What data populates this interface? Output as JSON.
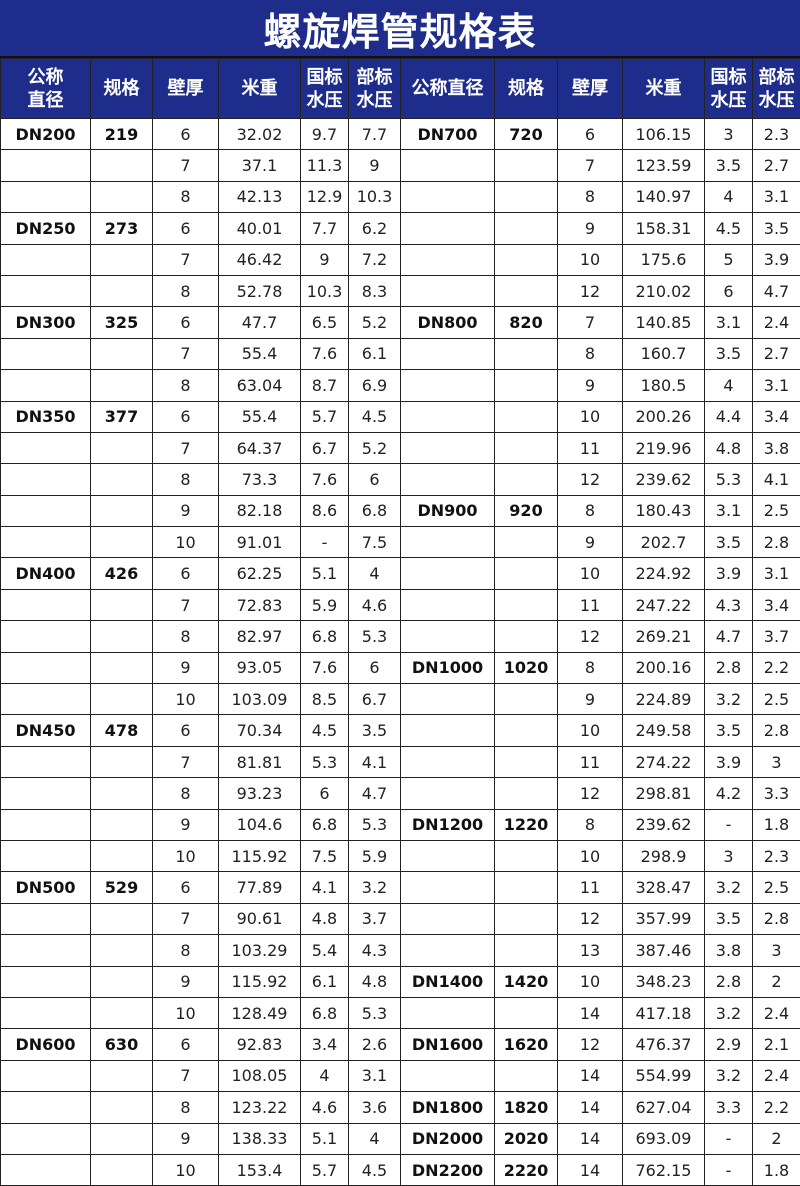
{
  "title": "螺旋焊管规格表",
  "headers": [
    "公称\n直径",
    "规格",
    "壁厚",
    "米重",
    "国标\n水压",
    "部标\n水压",
    "公称直径",
    "规格",
    "壁厚",
    "米重",
    "国标\n水压",
    "部标\n水压"
  ],
  "colors": {
    "header_bg": "#1e2d8c",
    "header_text": "#ffffff"
  },
  "rows": [
    [
      "DN200",
      "219",
      "6",
      "32.02",
      "9.7",
      "7.7",
      "DN700",
      "720",
      "6",
      "106.15",
      "3",
      "2.3"
    ],
    [
      "",
      "",
      "7",
      "37.1",
      "11.3",
      "9",
      "",
      "",
      "7",
      "123.59",
      "3.5",
      "2.7"
    ],
    [
      "",
      "",
      "8",
      "42.13",
      "12.9",
      "10.3",
      "",
      "",
      "8",
      "140.97",
      "4",
      "3.1"
    ],
    [
      "DN250",
      "273",
      "6",
      "40.01",
      "7.7",
      "6.2",
      "",
      "",
      "9",
      "158.31",
      "4.5",
      "3.5"
    ],
    [
      "",
      "",
      "7",
      "46.42",
      "9",
      "7.2",
      "",
      "",
      "10",
      "175.6",
      "5",
      "3.9"
    ],
    [
      "",
      "",
      "8",
      "52.78",
      "10.3",
      "8.3",
      "",
      "",
      "12",
      "210.02",
      "6",
      "4.7"
    ],
    [
      "DN300",
      "325",
      "6",
      "47.7",
      "6.5",
      "5.2",
      "DN800",
      "820",
      "7",
      "140.85",
      "3.1",
      "2.4"
    ],
    [
      "",
      "",
      "7",
      "55.4",
      "7.6",
      "6.1",
      "",
      "",
      "8",
      "160.7",
      "3.5",
      "2.7"
    ],
    [
      "",
      "",
      "8",
      "63.04",
      "8.7",
      "6.9",
      "",
      "",
      "9",
      "180.5",
      "4",
      "3.1"
    ],
    [
      "DN350",
      "377",
      "6",
      "55.4",
      "5.7",
      "4.5",
      "",
      "",
      "10",
      "200.26",
      "4.4",
      "3.4"
    ],
    [
      "",
      "",
      "7",
      "64.37",
      "6.7",
      "5.2",
      "",
      "",
      "11",
      "219.96",
      "4.8",
      "3.8"
    ],
    [
      "",
      "",
      "8",
      "73.3",
      "7.6",
      "6",
      "",
      "",
      "12",
      "239.62",
      "5.3",
      "4.1"
    ],
    [
      "",
      "",
      "9",
      "82.18",
      "8.6",
      "6.8",
      "DN900",
      "920",
      "8",
      "180.43",
      "3.1",
      "2.5"
    ],
    [
      "",
      "",
      "10",
      "91.01",
      "-",
      "7.5",
      "",
      "",
      "9",
      "202.7",
      "3.5",
      "2.8"
    ],
    [
      "DN400",
      "426",
      "6",
      "62.25",
      "5.1",
      "4",
      "",
      "",
      "10",
      "224.92",
      "3.9",
      "3.1"
    ],
    [
      "",
      "",
      "7",
      "72.83",
      "5.9",
      "4.6",
      "",
      "",
      "11",
      "247.22",
      "4.3",
      "3.4"
    ],
    [
      "",
      "",
      "8",
      "82.97",
      "6.8",
      "5.3",
      "",
      "",
      "12",
      "269.21",
      "4.7",
      "3.7"
    ],
    [
      "",
      "",
      "9",
      "93.05",
      "7.6",
      "6",
      "DN1000",
      "1020",
      "8",
      "200.16",
      "2.8",
      "2.2"
    ],
    [
      "",
      "",
      "10",
      "103.09",
      "8.5",
      "6.7",
      "",
      "",
      "9",
      "224.89",
      "3.2",
      "2.5"
    ],
    [
      "DN450",
      "478",
      "6",
      "70.34",
      "4.5",
      "3.5",
      "",
      "",
      "10",
      "249.58",
      "3.5",
      "2.8"
    ],
    [
      "",
      "",
      "7",
      "81.81",
      "5.3",
      "4.1",
      "",
      "",
      "11",
      "274.22",
      "3.9",
      "3"
    ],
    [
      "",
      "",
      "8",
      "93.23",
      "6",
      "4.7",
      "",
      "",
      "12",
      "298.81",
      "4.2",
      "3.3"
    ],
    [
      "",
      "",
      "9",
      "104.6",
      "6.8",
      "5.3",
      "DN1200",
      "1220",
      "8",
      "239.62",
      "-",
      "1.8"
    ],
    [
      "",
      "",
      "10",
      "115.92",
      "7.5",
      "5.9",
      "",
      "",
      "10",
      "298.9",
      "3",
      "2.3"
    ],
    [
      "DN500",
      "529",
      "6",
      "77.89",
      "4.1",
      "3.2",
      "",
      "",
      "11",
      "328.47",
      "3.2",
      "2.5"
    ],
    [
      "",
      "",
      "7",
      "90.61",
      "4.8",
      "3.7",
      "",
      "",
      "12",
      "357.99",
      "3.5",
      "2.8"
    ],
    [
      "",
      "",
      "8",
      "103.29",
      "5.4",
      "4.3",
      "",
      "",
      "13",
      "387.46",
      "3.8",
      "3"
    ],
    [
      "",
      "",
      "9",
      "115.92",
      "6.1",
      "4.8",
      "DN1400",
      "1420",
      "10",
      "348.23",
      "2.8",
      "2"
    ],
    [
      "",
      "",
      "10",
      "128.49",
      "6.8",
      "5.3",
      "",
      "",
      "14",
      "417.18",
      "3.2",
      "2.4"
    ],
    [
      "DN600",
      "630",
      "6",
      "92.83",
      "3.4",
      "2.6",
      "DN1600",
      "1620",
      "12",
      "476.37",
      "2.9",
      "2.1"
    ],
    [
      "",
      "",
      "7",
      "108.05",
      "4",
      "3.1",
      "",
      "",
      "14",
      "554.99",
      "3.2",
      "2.4"
    ],
    [
      "",
      "",
      "8",
      "123.22",
      "4.6",
      "3.6",
      "DN1800",
      "1820",
      "14",
      "627.04",
      "3.3",
      "2.2"
    ],
    [
      "",
      "",
      "9",
      "138.33",
      "5.1",
      "4",
      "DN2000",
      "2020",
      "14",
      "693.09",
      "-",
      "2"
    ],
    [
      "",
      "",
      "10",
      "153.4",
      "5.7",
      "4.5",
      "DN2200",
      "2220",
      "14",
      "762.15",
      "-",
      "1.8"
    ]
  ]
}
